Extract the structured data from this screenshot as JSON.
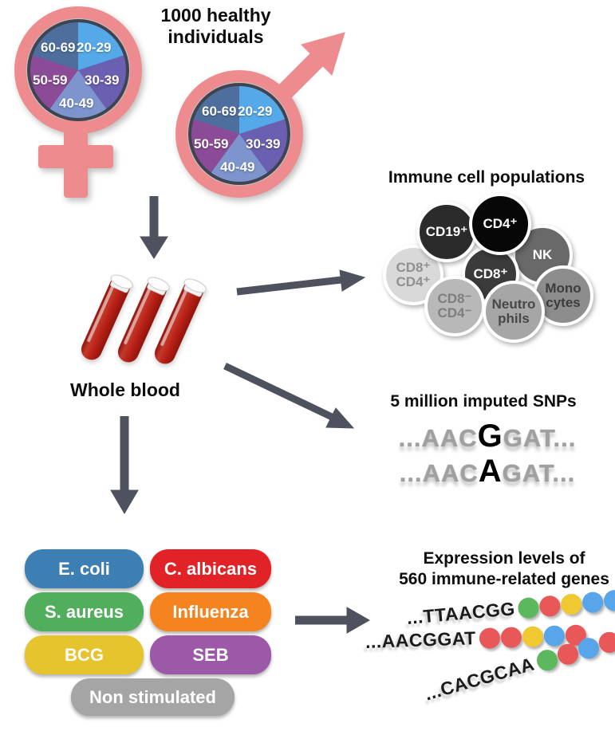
{
  "palette": {
    "salmon": "#ed8b8e",
    "arrow_gray": "#4d525e",
    "pie_border": "#3f4450",
    "blood_red": "#b71f15"
  },
  "header": {
    "title": "1000 healthy individuals"
  },
  "demographics": {
    "age_groups": [
      "20-29",
      "30-39",
      "40-49",
      "50-59",
      "60-69"
    ],
    "age_colors": {
      "20-29": "#55a9e8",
      "30-39": "#6a5fb0",
      "40-49": "#7d94cd",
      "50-59": "#8c4b96",
      "60-69": "#4e6f9e"
    }
  },
  "whole_blood": {
    "label": "Whole blood"
  },
  "immune": {
    "title": "Immune cell populations",
    "cells": [
      {
        "id": "cd8pos-cd4pos",
        "line1": "CD8⁺",
        "line2": "CD4⁺",
        "bg": "#d9d9d9",
        "fg": "#909090"
      },
      {
        "id": "cd19pos",
        "line1": "CD19⁺",
        "line2": "",
        "bg": "#2b2b2b",
        "fg": "#ffffff"
      },
      {
        "id": "nk",
        "line1": "NK",
        "line2": "",
        "bg": "#696969",
        "fg": "#ffffff"
      },
      {
        "id": "cd8pos",
        "line1": "CD8⁺",
        "line2": "",
        "bg": "#3b3b3b",
        "fg": "#ffffff"
      },
      {
        "id": "cd4pos",
        "line1": "CD4⁺",
        "line2": "",
        "bg": "#070707",
        "fg": "#ffffff"
      },
      {
        "id": "monocytes",
        "line1": "Mono",
        "line2": "cytes",
        "bg": "#8d8d8d",
        "fg": "#3d3d3d"
      },
      {
        "id": "cd8neg-cd4neg",
        "line1": "CD8⁻",
        "line2": "CD4⁻",
        "bg": "#b8b8b8",
        "fg": "#7e7e7e"
      },
      {
        "id": "neutrophils",
        "line1": "Neutro",
        "line2": "phils",
        "bg": "#a6a6a6",
        "fg": "#474747"
      }
    ]
  },
  "snps": {
    "title": "5 million imputed SNPs",
    "sequences": [
      {
        "pre": "...AAC",
        "snp": "G",
        "post": "GAT..."
      },
      {
        "pre": "...AAC",
        "snp": "A",
        "post": "GAT..."
      }
    ]
  },
  "stimuli": {
    "items": [
      {
        "label": "E. coli",
        "color": "#3d7fb3"
      },
      {
        "label": "C. albicans",
        "color": "#e12227"
      },
      {
        "label": "S. aureus",
        "color": "#50ae5c"
      },
      {
        "label": "Influenza",
        "color": "#f5831f"
      },
      {
        "label": "BCG",
        "color": "#e5c42e"
      },
      {
        "label": "SEB",
        "color": "#9c59a8"
      },
      {
        "label": "Non stimulated",
        "color": "#a5a5a5"
      }
    ]
  },
  "expression": {
    "title_line1": "Expression levels of",
    "title_line2": "560 immune-related genes",
    "dot_colors": {
      "green": "#5cb85c",
      "red": "#e85858",
      "yellow": "#f0c832",
      "blue": "#58a5ea"
    },
    "rows": [
      {
        "seq": "...TTAACGG",
        "dots": [
          "green",
          "red",
          "yellow",
          "blue",
          "blue"
        ]
      },
      {
        "seq": "...AACGGAT",
        "dots": [
          "red",
          "red",
          "yellow",
          "blue",
          "red"
        ]
      },
      {
        "seq": "...CACGCAA",
        "dots": [
          "green",
          "red",
          "blue",
          "red",
          "red"
        ]
      }
    ]
  }
}
